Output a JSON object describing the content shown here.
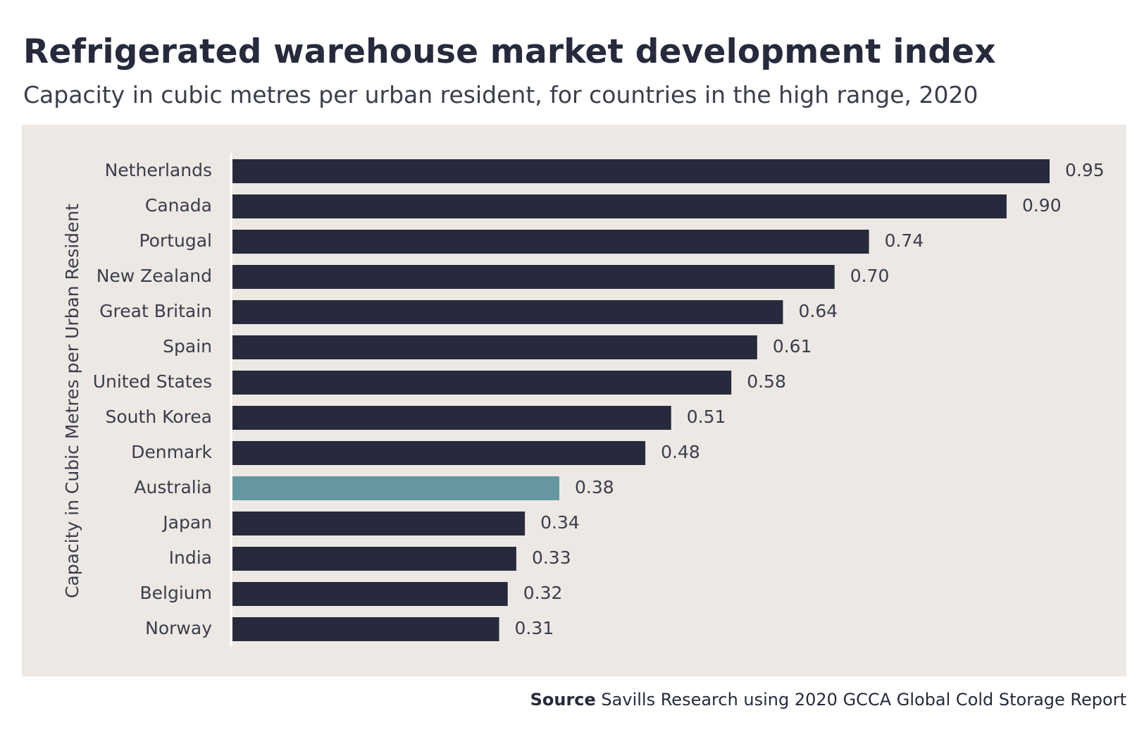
{
  "chart_data": {
    "type": "bar",
    "orientation": "horizontal",
    "title": "Refrigerated warehouse market development index",
    "subtitle": "Capacity in cubic metres per urban resident, for countries in the high range, 2020",
    "ylabel": "Capacity in Cubic Metres per Urban Resident",
    "xlabel": "",
    "xlim": [
      0,
      0.95
    ],
    "grid": false,
    "categories": [
      "Netherlands",
      "Canada",
      "Portugal",
      "New Zealand",
      "Great Britain",
      "Spain",
      "United States",
      "South Korea",
      "Denmark",
      "Australia",
      "Japan",
      "India",
      "Belgium",
      "Norway"
    ],
    "values": [
      0.95,
      0.9,
      0.74,
      0.7,
      0.64,
      0.61,
      0.58,
      0.51,
      0.48,
      0.38,
      0.34,
      0.33,
      0.32,
      0.31
    ],
    "value_labels": [
      "0.95",
      "0.90",
      "0.74",
      "0.70",
      "0.64",
      "0.61",
      "0.58",
      "0.51",
      "0.48",
      "0.38",
      "0.34",
      "0.33",
      "0.32",
      "0.31"
    ],
    "highlight": "Australia",
    "colors": {
      "bar": "#262a3c",
      "highlight": "#64979f",
      "panel": "#ede8e3",
      "axis": "#ffffff"
    }
  },
  "source": {
    "label": "Source",
    "text": "Savills Research using 2020 GCCA Global Cold Storage Report"
  }
}
